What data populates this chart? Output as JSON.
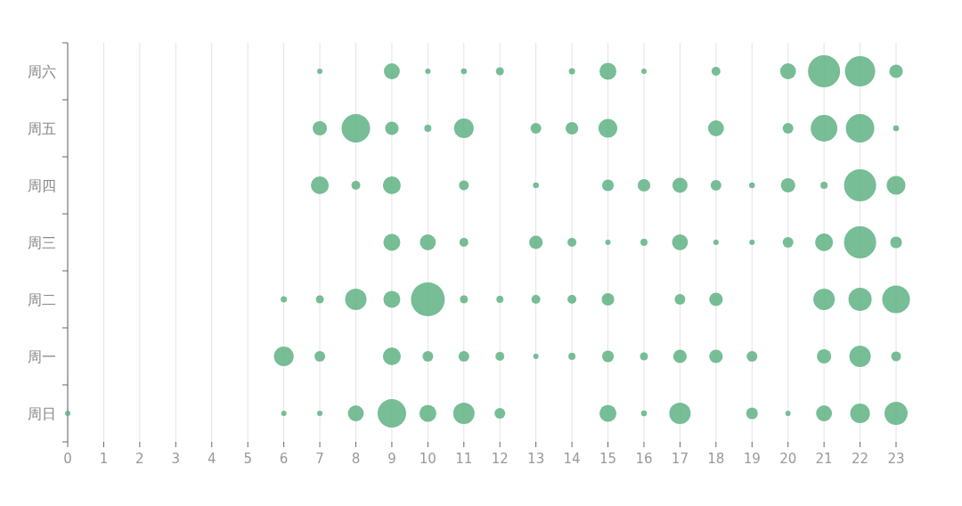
{
  "chart_data": {
    "type": "bubble",
    "orientation": "horizontal",
    "grid": "x",
    "color": "#5fb282",
    "xlim": [
      0,
      23
    ],
    "xticks": [
      0,
      1,
      2,
      3,
      4,
      5,
      6,
      7,
      8,
      9,
      10,
      11,
      12,
      13,
      14,
      15,
      16,
      17,
      18,
      19,
      20,
      21,
      22,
      23
    ],
    "categories": [
      "周六",
      "周五",
      "周四",
      "周三",
      "周二",
      "周一",
      "周日"
    ],
    "series": [
      {
        "values": [
          null,
          null,
          null,
          null,
          null,
          null,
          0
        ],
        "sizes": [
          null,
          null,
          null,
          null,
          null,
          null,
          0.025
        ]
      },
      {
        "values": [
          null,
          null,
          null,
          null,
          6,
          6,
          6
        ],
        "sizes": [
          null,
          null,
          null,
          null,
          0.034,
          0.34,
          0.025
        ]
      },
      {
        "values": [
          7,
          7,
          7,
          null,
          7,
          7,
          7
        ],
        "sizes": [
          0.025,
          0.18,
          0.28,
          null,
          0.056,
          0.1,
          0.025
        ]
      },
      {
        "values": [
          null,
          8,
          8,
          null,
          8,
          null,
          8
        ],
        "sizes": [
          null,
          0.71,
          0.069,
          null,
          0.4,
          null,
          0.22
        ]
      },
      {
        "values": [
          9,
          9,
          9,
          9,
          9,
          9,
          9
        ],
        "sizes": [
          0.22,
          0.16,
          0.28,
          0.25,
          0.25,
          0.28,
          0.71
        ]
      },
      {
        "values": [
          10,
          10,
          null,
          10,
          10,
          10,
          10
        ],
        "sizes": [
          0.025,
          0.044,
          null,
          0.22,
          1,
          0.1,
          0.25
        ]
      },
      {
        "values": [
          11,
          11,
          11,
          11,
          11,
          11,
          11
        ],
        "sizes": [
          0.03,
          0.34,
          0.084,
          0.069,
          0.056,
          0.1,
          0.4
        ]
      },
      {
        "values": [
          12,
          null,
          null,
          null,
          12,
          12,
          12
        ],
        "sizes": [
          0.056,
          null,
          null,
          null,
          0.044,
          0.069,
          0.1
        ]
      },
      {
        "values": [
          null,
          13,
          13,
          13,
          13,
          13,
          null
        ],
        "sizes": [
          null,
          0.1,
          0.03,
          0.16,
          0.069,
          0.025,
          null
        ]
      },
      {
        "values": [
          14,
          14,
          null,
          14,
          14,
          14,
          null
        ],
        "sizes": [
          0.034,
          0.14,
          null,
          0.069,
          0.069,
          0.044,
          null
        ]
      },
      {
        "values": [
          15,
          15,
          15,
          15,
          15,
          15,
          15
        ],
        "sizes": [
          0.25,
          0.31,
          0.12,
          0.025,
          0.14,
          0.12,
          0.25
        ]
      },
      {
        "values": [
          16,
          null,
          16,
          16,
          null,
          16,
          16
        ],
        "sizes": [
          0.025,
          null,
          0.14,
          0.044,
          null,
          0.056,
          0.03
        ]
      },
      {
        "values": [
          null,
          null,
          17,
          17,
          17,
          17,
          17
        ],
        "sizes": [
          null,
          null,
          0.2,
          0.22,
          0.1,
          0.16,
          0.4
        ]
      },
      {
        "values": [
          18,
          18,
          18,
          18,
          18,
          18,
          null
        ],
        "sizes": [
          0.069,
          0.22,
          0.1,
          0.025,
          0.16,
          0.16,
          null
        ]
      },
      {
        "values": [
          null,
          null,
          19,
          19,
          null,
          19,
          19
        ],
        "sizes": [
          null,
          null,
          0.03,
          0.025,
          null,
          0.1,
          0.12
        ]
      },
      {
        "values": [
          20,
          20,
          20,
          20,
          null,
          null,
          20
        ],
        "sizes": [
          0.22,
          0.1,
          0.18,
          0.1,
          null,
          null,
          0.025
        ]
      },
      {
        "values": [
          21,
          21,
          21,
          21,
          21,
          21,
          21
        ],
        "sizes": [
          0.9,
          0.62,
          0.044,
          0.28,
          0.4,
          0.18,
          0.22
        ]
      },
      {
        "values": [
          22,
          22,
          22,
          22,
          22,
          22,
          22
        ],
        "sizes": [
          0.8,
          0.71,
          0.9,
          0.9,
          0.47,
          0.4,
          0.34
        ]
      },
      {
        "values": [
          23,
          23,
          23,
          23,
          23,
          23,
          23
        ],
        "sizes": [
          0.16,
          0.03,
          0.31,
          0.12,
          0.67,
          0.084,
          0.47
        ]
      }
    ]
  }
}
